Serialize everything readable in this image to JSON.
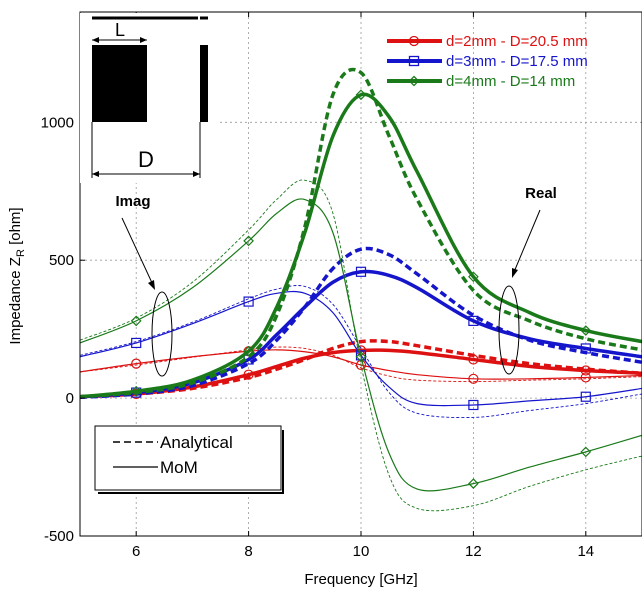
{
  "chart_data": {
    "type": "line",
    "xlabel": "Frequency [GHz]",
    "ylabel_main": "Impedance Z",
    "ylabel_sub": "R",
    "ylabel_unit": " [ohm]",
    "xlim": [
      5,
      15
    ],
    "ylim": [
      -500,
      1400
    ],
    "xticks": [
      6,
      8,
      10,
      12,
      14
    ],
    "yticks": [
      -500,
      0,
      500,
      1000
    ],
    "grid": true,
    "legend_position": "top-right",
    "series": [
      {
        "name": "d=2mm - D=20.5 mm",
        "color": "#dd1111",
        "marker": "circle",
        "real": {
          "mom": {
            "x": [
              5,
              6,
              7,
              8,
              8.5,
              9,
              9.5,
              10,
              10.5,
              11,
              12,
              13,
              14,
              15
            ],
            "y": [
              5,
              15,
              40,
              85,
              115,
              145,
              165,
              173,
              173,
              165,
              140,
              115,
              100,
              90
            ]
          },
          "analytical": {
            "x": [
              5,
              6,
              7,
              8,
              8.5,
              9,
              9.5,
              10,
              10.5,
              11,
              12,
              13,
              14,
              15
            ],
            "y": [
              5,
              15,
              35,
              75,
              105,
              140,
              180,
              205,
              205,
              190,
              155,
              125,
              105,
              90
            ]
          }
        },
        "imag": {
          "mom": {
            "x": [
              5,
              6,
              7,
              8,
              8.5,
              9,
              9.5,
              10,
              10.5,
              11,
              12,
              13,
              14,
              15
            ],
            "y": [
              95,
              125,
              150,
              170,
              175,
              168,
              150,
              120,
              100,
              85,
              70,
              70,
              75,
              82
            ]
          },
          "analytical": {
            "x": [
              5,
              6,
              7,
              8,
              8.5,
              9,
              9.5,
              10,
              10.5,
              11,
              12,
              13,
              14,
              15
            ],
            "y": [
              95,
              120,
              148,
              175,
              185,
              180,
              155,
              110,
              80,
              65,
              60,
              65,
              70,
              78
            ]
          }
        }
      },
      {
        "name": "d=3mm - D=17.5 mm",
        "color": "#1515cc",
        "marker": "square",
        "real": {
          "mom": {
            "x": [
              5,
              6,
              7,
              8,
              8.5,
              9,
              9.5,
              10,
              10.5,
              11,
              12,
              13,
              14,
              15
            ],
            "y": [
              5,
              20,
              55,
              140,
              230,
              330,
              420,
              458,
              445,
              400,
              280,
              215,
              180,
              150
            ]
          },
          "analytical": {
            "x": [
              5,
              6,
              7,
              8,
              8.5,
              9,
              9.5,
              10,
              10.5,
              11,
              12,
              13,
              14,
              15
            ],
            "y": [
              3,
              15,
              45,
              125,
              210,
              330,
              470,
              540,
              520,
              450,
              300,
              210,
              165,
              130
            ]
          }
        },
        "imag": {
          "mom": {
            "x": [
              5,
              6,
              7,
              8,
              8.5,
              9,
              9.5,
              10,
              10.5,
              11,
              12,
              13,
              14,
              15
            ],
            "y": [
              150,
              200,
              270,
              350,
              380,
              380,
              310,
              155,
              40,
              -20,
              -25,
              -10,
              5,
              35
            ]
          },
          "analytical": {
            "x": [
              5,
              6,
              7,
              8,
              8.5,
              9,
              9.5,
              10,
              10.5,
              11,
              12,
              13,
              14,
              15
            ],
            "y": [
              155,
              205,
              275,
              360,
              395,
              405,
              340,
              180,
              20,
              -55,
              -70,
              -45,
              -20,
              15
            ]
          }
        }
      },
      {
        "name": "d=4mm - D=14 mm",
        "color": "#1a7a1a",
        "marker": "diamond",
        "real": {
          "mom": {
            "x": [
              5,
              6,
              7,
              8,
              8.5,
              9,
              9.5,
              10,
              10.5,
              11,
              12,
              13,
              14,
              15
            ],
            "y": [
              5,
              25,
              65,
              170,
              330,
              600,
              950,
              1100,
              1020,
              820,
              440,
              310,
              245,
              205
            ]
          },
          "analytical": {
            "x": [
              5,
              6,
              7,
              8,
              8.5,
              9,
              9.5,
              10,
              10.5,
              11,
              12,
              13,
              14,
              15
            ],
            "y": [
              5,
              20,
              55,
              150,
              300,
              620,
              1100,
              1180,
              950,
              720,
              390,
              280,
              215,
              175
            ]
          }
        },
        "imag": {
          "mom": {
            "x": [
              5,
              6,
              7,
              8,
              8.5,
              9,
              9.5,
              10,
              10.5,
              11,
              12,
              13,
              14,
              15
            ],
            "y": [
              200,
              280,
              400,
              570,
              670,
              720,
              600,
              150,
              -200,
              -330,
              -310,
              -250,
              -195,
              -135
            ]
          },
          "analytical": {
            "x": [
              5,
              6,
              7,
              8,
              8.5,
              9,
              9.5,
              10,
              10.5,
              11,
              12,
              13,
              14,
              15
            ],
            "y": [
              210,
              290,
              420,
              610,
              720,
              790,
              670,
              120,
              -280,
              -400,
              -390,
              -320,
              -260,
              -210
            ]
          }
        }
      }
    ],
    "annotations": [
      {
        "text": "Imag",
        "target": "imaginary-part-curves"
      },
      {
        "text": "Real",
        "target": "real-part-curves"
      }
    ],
    "inset_labels": [
      "L",
      "D"
    ],
    "style_legend": [
      {
        "label": "Analytical",
        "style": "dashed"
      },
      {
        "label": "MoM",
        "style": "solid"
      }
    ]
  }
}
